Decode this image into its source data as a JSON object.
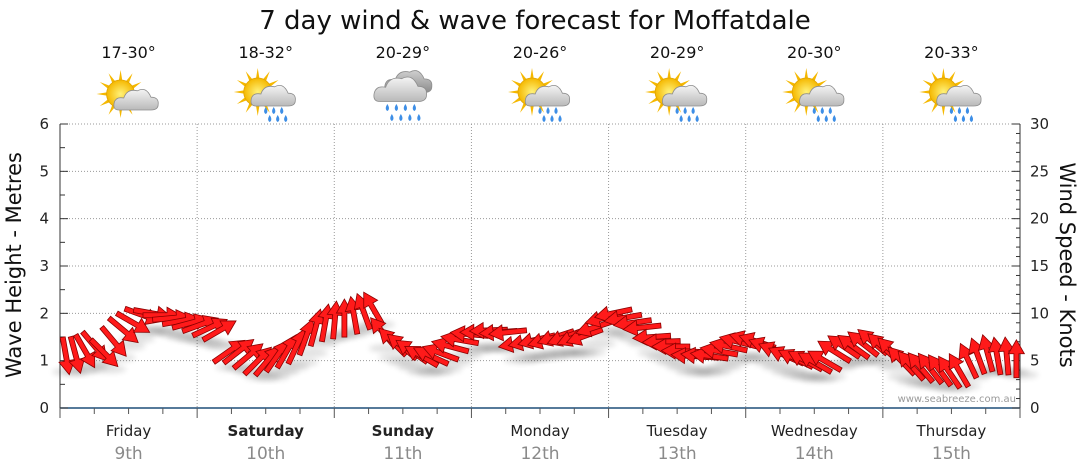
{
  "chart_data": {
    "type": "line",
    "title": "7 day wind & wave forecast for Moffatdale",
    "ylabel_left": "Wave Height - Metres",
    "ylabel_right": "Wind Speed - Knots",
    "ylim_left": [
      0,
      6
    ],
    "ylim_right": [
      0,
      30
    ],
    "yticks_left": [
      "0",
      "1",
      "2",
      "3",
      "4",
      "5",
      "6"
    ],
    "yticks_right": [
      "0",
      "5",
      "10",
      "15",
      "20",
      "25",
      "30"
    ],
    "grid": true,
    "watermark": "www.seabreeze.com.au",
    "days": [
      {
        "name": "Friday",
        "date": "9th",
        "bold": false,
        "temp": "17-30°",
        "weather": "partly-cloudy-icon"
      },
      {
        "name": "Saturday",
        "date": "10th",
        "bold": true,
        "temp": "18-32°",
        "weather": "sun-showers-icon"
      },
      {
        "name": "Sunday",
        "date": "11th",
        "bold": true,
        "temp": "20-29°",
        "weather": "rain-icon"
      },
      {
        "name": "Monday",
        "date": "12th",
        "bold": false,
        "temp": "20-26°",
        "weather": "sun-showers-icon"
      },
      {
        "name": "Tuesday",
        "date": "13th",
        "bold": false,
        "temp": "20-29°",
        "weather": "sun-showers-icon"
      },
      {
        "name": "Wednesday",
        "date": "14th",
        "bold": false,
        "temp": "20-30°",
        "weather": "sun-showers-icon"
      },
      {
        "name": "Thursday",
        "date": "15th",
        "bold": false,
        "temp": "20-33°",
        "weather": "sun-showers-icon"
      }
    ],
    "series": [
      {
        "type": "wind-arrows",
        "unit": "knots",
        "color": "#ff1a1a",
        "points": [
          [
            0.0,
            5.5,
            80
          ],
          [
            0.25,
            5.6,
            75
          ],
          [
            0.5,
            6.0,
            60
          ],
          [
            0.75,
            6.5,
            50
          ],
          [
            1.0,
            5.8,
            45
          ],
          [
            1.25,
            7.0,
            50
          ],
          [
            1.5,
            8.2,
            40
          ],
          [
            1.75,
            9.0,
            30
          ],
          [
            2.0,
            9.8,
            20
          ],
          [
            2.25,
            10.0,
            10
          ],
          [
            2.5,
            9.8,
            0
          ],
          [
            2.75,
            9.5,
            -5
          ],
          [
            3.0,
            9.2,
            -10
          ],
          [
            3.25,
            9.0,
            -15
          ],
          [
            3.5,
            8.8,
            -20
          ],
          [
            3.75,
            8.5,
            -25
          ],
          [
            4.0,
            8.2,
            -30
          ],
          [
            4.25,
            6.0,
            -35
          ],
          [
            4.5,
            6.0,
            -38
          ],
          [
            4.75,
            5.5,
            -40
          ],
          [
            5.0,
            5.0,
            -45
          ],
          [
            5.25,
            5.0,
            -50
          ],
          [
            5.5,
            5.5,
            -55
          ],
          [
            5.75,
            6.0,
            -60
          ],
          [
            6.0,
            6.5,
            -65
          ],
          [
            6.25,
            7.5,
            -70
          ],
          [
            6.5,
            8.5,
            -75
          ],
          [
            6.75,
            9.0,
            -80
          ],
          [
            7.0,
            9.3,
            -85
          ],
          [
            7.25,
            9.5,
            -90
          ],
          [
            7.5,
            9.8,
            -100
          ],
          [
            7.75,
            10.2,
            -110
          ],
          [
            8.0,
            10.5,
            -120
          ],
          [
            8.25,
            8.0,
            -130
          ],
          [
            8.5,
            7.0,
            -135
          ],
          [
            8.75,
            6.5,
            -140
          ],
          [
            9.0,
            6.0,
            -145
          ],
          [
            9.25,
            5.5,
            -150
          ],
          [
            9.5,
            5.5,
            -155
          ],
          [
            9.75,
            5.8,
            -160
          ],
          [
            10.0,
            6.5,
            -165
          ],
          [
            10.25,
            7.2,
            -170
          ],
          [
            10.5,
            7.8,
            -175
          ],
          [
            10.75,
            8.0,
            180
          ],
          [
            11.0,
            8.2,
            178
          ],
          [
            11.25,
            8.0,
            176
          ],
          [
            11.5,
            8.0,
            174
          ],
          [
            11.75,
            6.8,
            170
          ],
          [
            12.0,
            7.0,
            168
          ],
          [
            12.25,
            7.2,
            166
          ],
          [
            12.5,
            7.2,
            164
          ],
          [
            12.75,
            7.5,
            162
          ],
          [
            13.0,
            7.5,
            160
          ],
          [
            13.25,
            7.5,
            158
          ],
          [
            13.5,
            7.6,
            160
          ],
          [
            13.75,
            8.5,
            162
          ],
          [
            14.0,
            9.5,
            165
          ],
          [
            14.25,
            10.0,
            168
          ],
          [
            14.5,
            9.5,
            170
          ],
          [
            14.75,
            9.0,
            172
          ],
          [
            15.0,
            8.5,
            174
          ],
          [
            15.25,
            7.5,
            176
          ],
          [
            15.5,
            7.0,
            178
          ],
          [
            15.75,
            6.5,
            180
          ],
          [
            16.0,
            6.0,
            -178
          ],
          [
            16.25,
            5.5,
            -176
          ],
          [
            16.5,
            5.5,
            -174
          ],
          [
            16.75,
            5.5,
            -172
          ],
          [
            17.0,
            6.0,
            -170
          ],
          [
            17.25,
            6.5,
            -168
          ],
          [
            17.5,
            7.0,
            -166
          ],
          [
            17.75,
            7.2,
            -164
          ],
          [
            18.0,
            7.0,
            -162
          ],
          [
            18.25,
            6.5,
            -160
          ],
          [
            18.5,
            6.0,
            -158
          ],
          [
            18.75,
            5.5,
            -156
          ],
          [
            19.0,
            5.2,
            -154
          ],
          [
            19.25,
            5.0,
            -152
          ],
          [
            19.5,
            4.8,
            -150
          ],
          [
            19.75,
            5.0,
            -150
          ],
          [
            20.0,
            6.0,
            -148
          ],
          [
            20.25,
            6.5,
            -146
          ],
          [
            20.5,
            6.5,
            -144
          ],
          [
            20.75,
            6.8,
            -142
          ],
          [
            21.0,
            7.0,
            -140
          ],
          [
            21.25,
            6.5,
            -138
          ],
          [
            21.5,
            6.0,
            -136
          ],
          [
            21.75,
            5.0,
            -134
          ],
          [
            22.0,
            4.5,
            -132
          ],
          [
            22.25,
            4.3,
            -130
          ],
          [
            22.5,
            4.2,
            -128
          ],
          [
            22.75,
            4.0,
            -126
          ],
          [
            23.0,
            3.8,
            -124
          ],
          [
            23.25,
            4.0,
            -120
          ],
          [
            23.5,
            5.0,
            -115
          ],
          [
            23.75,
            5.5,
            -110
          ],
          [
            24.0,
            5.8,
            -105
          ],
          [
            24.25,
            5.5,
            -100
          ],
          [
            24.5,
            5.5,
            -95
          ],
          [
            24.75,
            5.2,
            -90
          ]
        ]
      }
    ]
  }
}
